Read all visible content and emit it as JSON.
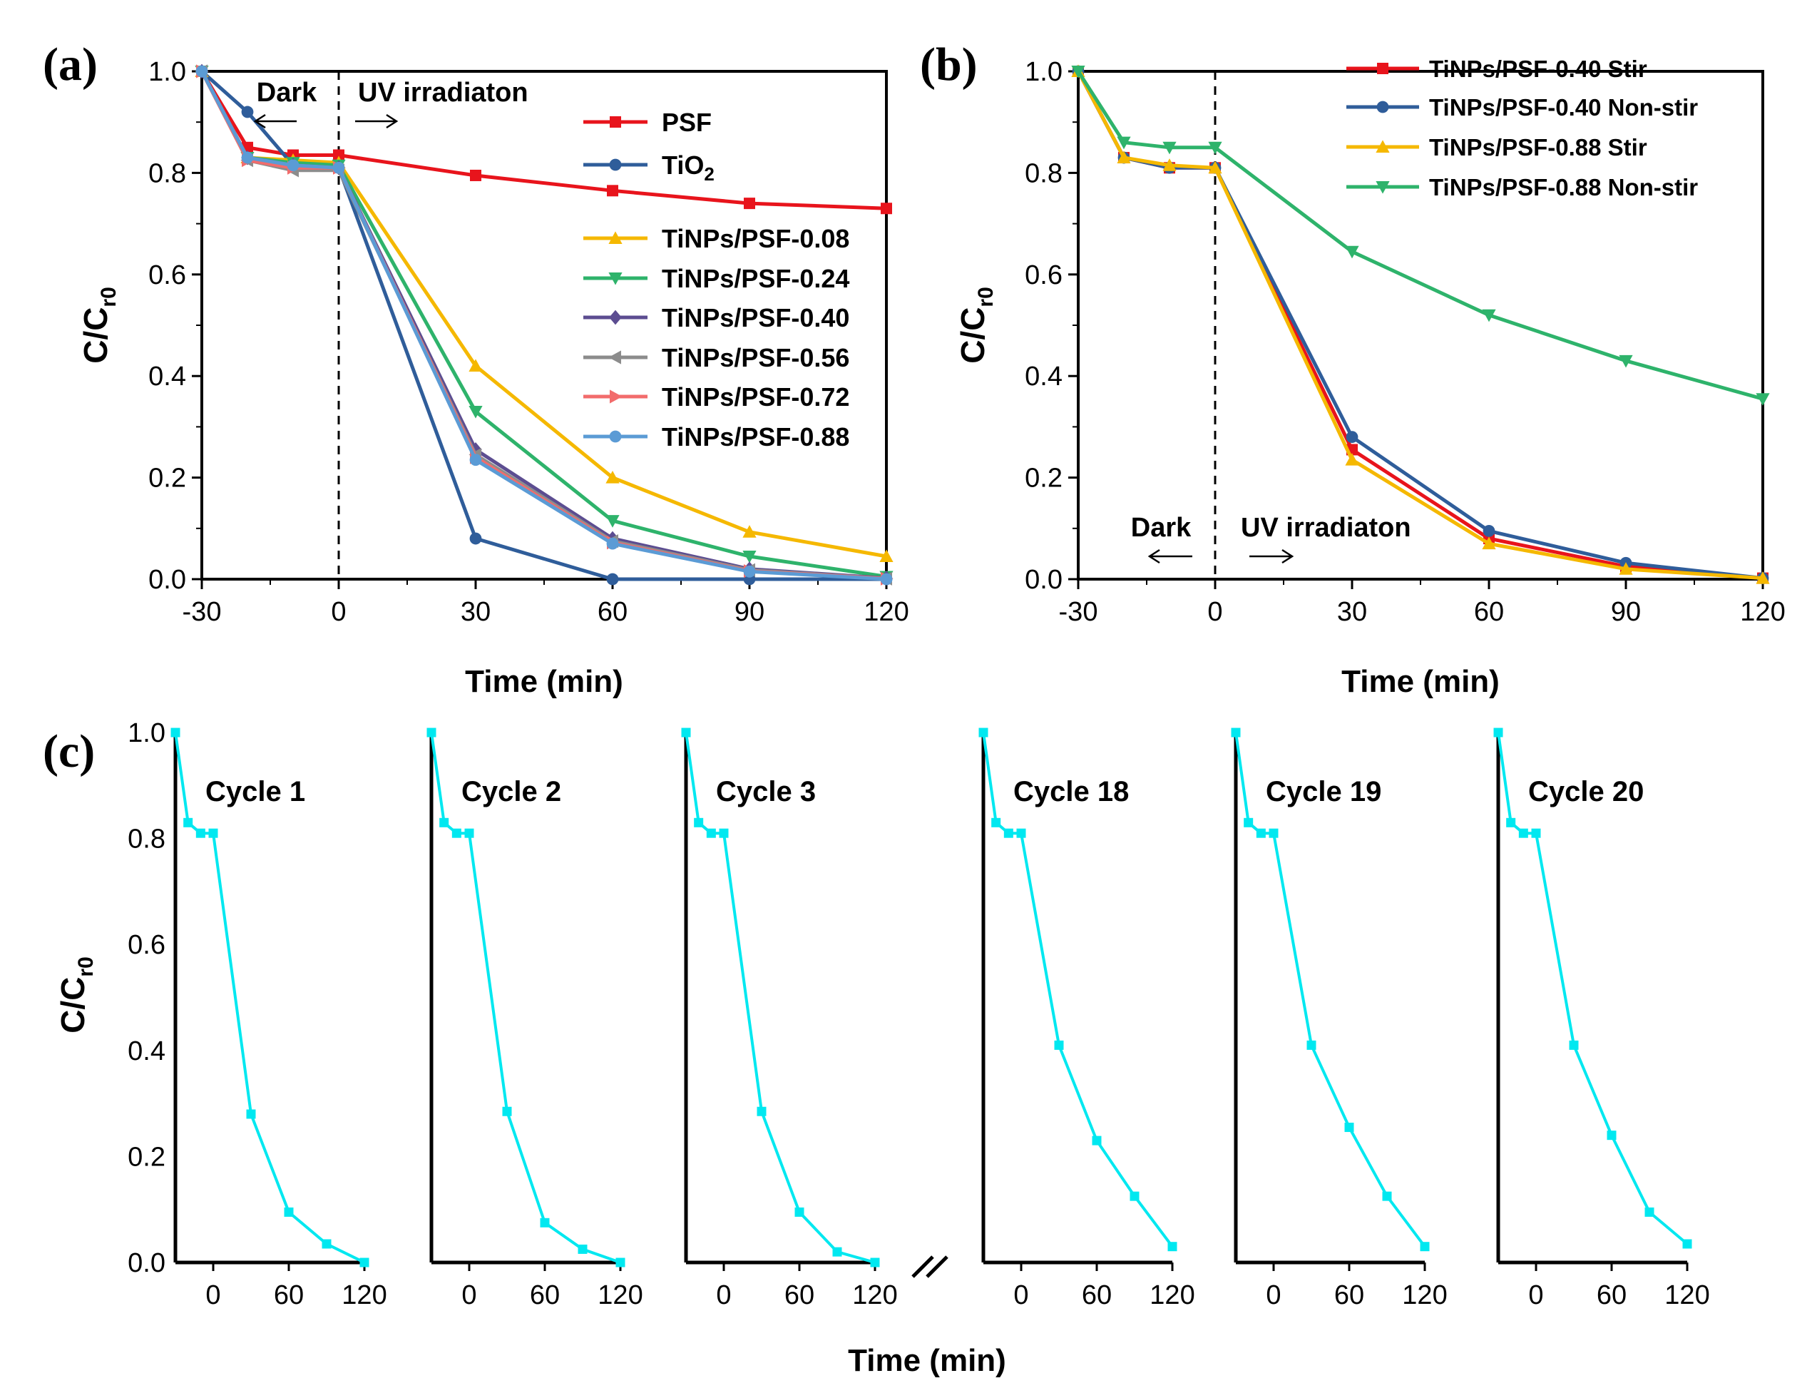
{
  "panels": {
    "a": {
      "label": "(a)"
    },
    "b": {
      "label": "(b)"
    },
    "c": {
      "label": "(c)"
    }
  },
  "chart_data": [
    {
      "id": "a",
      "type": "line",
      "title": "",
      "xlabel": "Time (min)",
      "ylabel": "C/C",
      "ylabel_sub": "r0",
      "xlim": [
        -30,
        120
      ],
      "ylim": [
        0,
        1.0
      ],
      "xticks": [
        -30,
        0,
        30,
        60,
        90,
        120
      ],
      "yticks": [
        0.0,
        0.2,
        0.4,
        0.6,
        0.8,
        1.0
      ],
      "divider_x": 0,
      "annotations": {
        "dark": "Dark",
        "uv": "UV irradiaton"
      },
      "series": [
        {
          "name": "PSF",
          "name_sub": "",
          "color": "#e8141c",
          "marker": "square",
          "x": [
            -30,
            -20,
            -10,
            0,
            30,
            60,
            90,
            120
          ],
          "y": [
            1.0,
            0.85,
            0.835,
            0.835,
            0.795,
            0.765,
            0.74,
            0.73
          ]
        },
        {
          "name": "TiO",
          "name_sub": "2",
          "color": "#2f5d9a",
          "marker": "circle",
          "x": [
            -30,
            -20,
            -10,
            0,
            30,
            60,
            90,
            120
          ],
          "y": [
            1.0,
            0.92,
            0.815,
            0.81,
            0.08,
            0.0,
            0.0,
            0.0
          ]
        },
        {
          "name": "TiNPs/PSF-0.08",
          "name_sub": "",
          "color": "#f5b800",
          "marker": "triangle-up",
          "x": [
            -30,
            -20,
            -10,
            0,
            30,
            60,
            90,
            120
          ],
          "y": [
            1.0,
            0.83,
            0.825,
            0.82,
            0.42,
            0.2,
            0.093,
            0.045
          ]
        },
        {
          "name": "TiNPs/PSF-0.24",
          "name_sub": "",
          "color": "#2eb36b",
          "marker": "triangle-down",
          "x": [
            -30,
            -20,
            -10,
            0,
            30,
            60,
            90,
            120
          ],
          "y": [
            1.0,
            0.83,
            0.82,
            0.815,
            0.33,
            0.115,
            0.045,
            0.005
          ]
        },
        {
          "name": "TiNPs/PSF-0.40",
          "name_sub": "",
          "color": "#5c4d91",
          "marker": "diamond",
          "x": [
            -30,
            -20,
            -10,
            0,
            30,
            60,
            90,
            120
          ],
          "y": [
            1.0,
            0.83,
            0.815,
            0.81,
            0.255,
            0.08,
            0.02,
            0.002
          ]
        },
        {
          "name": "TiNPs/PSF-0.56",
          "name_sub": "",
          "color": "#8c8c8c",
          "marker": "triangle-left",
          "x": [
            -30,
            -20,
            -10,
            0,
            30,
            60,
            90,
            120
          ],
          "y": [
            1.0,
            0.825,
            0.805,
            0.805,
            0.245,
            0.075,
            0.018,
            0.001
          ]
        },
        {
          "name": "TiNPs/PSF-0.72",
          "name_sub": "",
          "color": "#f26c6c",
          "marker": "triangle-right",
          "x": [
            -30,
            -20,
            -10,
            0,
            30,
            60,
            90,
            120
          ],
          "y": [
            1.0,
            0.825,
            0.81,
            0.81,
            0.24,
            0.072,
            0.016,
            0.001
          ]
        },
        {
          "name": "TiNPs/PSF-0.88",
          "name_sub": "",
          "color": "#5b9bd5",
          "marker": "circle",
          "x": [
            -30,
            -20,
            -10,
            0,
            30,
            60,
            90,
            120
          ],
          "y": [
            1.0,
            0.83,
            0.815,
            0.81,
            0.235,
            0.07,
            0.015,
            0.0
          ]
        }
      ]
    },
    {
      "id": "b",
      "type": "line",
      "title": "",
      "xlabel": "Time (min)",
      "ylabel": "C/C",
      "ylabel_sub": "r0",
      "xlim": [
        -30,
        120
      ],
      "ylim": [
        0,
        1.0
      ],
      "xticks": [
        -30,
        0,
        30,
        60,
        90,
        120
      ],
      "yticks": [
        0.0,
        0.2,
        0.4,
        0.6,
        0.8,
        1.0
      ],
      "divider_x": 0,
      "annotations": {
        "dark": "Dark",
        "uv": "UV irradiaton"
      },
      "series": [
        {
          "name": "TiNPs/PSF-0.40 Stir",
          "color": "#e8141c",
          "marker": "square",
          "x": [
            -30,
            -20,
            -10,
            0,
            30,
            60,
            90,
            120
          ],
          "y": [
            1.0,
            0.83,
            0.81,
            0.81,
            0.255,
            0.08,
            0.025,
            0.002
          ]
        },
        {
          "name": "TiNPs/PSF-0.40 Non-stir",
          "color": "#2f5d9a",
          "marker": "circle",
          "x": [
            -30,
            -20,
            -10,
            0,
            30,
            60,
            90,
            120
          ],
          "y": [
            1.0,
            0.83,
            0.81,
            0.81,
            0.28,
            0.095,
            0.032,
            0.002
          ]
        },
        {
          "name": "TiNPs/PSF-0.88 Stir",
          "color": "#f5b800",
          "marker": "triangle-up",
          "x": [
            -30,
            -20,
            -10,
            0,
            30,
            60,
            90,
            120
          ],
          "y": [
            1.0,
            0.83,
            0.815,
            0.81,
            0.235,
            0.07,
            0.02,
            0.002
          ]
        },
        {
          "name": "TiNPs/PSF-0.88 Non-stir",
          "color": "#2eb36b",
          "marker": "triangle-down",
          "x": [
            -30,
            -20,
            -10,
            0,
            30,
            60,
            90,
            120
          ],
          "y": [
            1.0,
            0.86,
            0.85,
            0.85,
            0.645,
            0.52,
            0.43,
            0.355
          ]
        }
      ]
    },
    {
      "id": "c",
      "type": "line",
      "title": "",
      "xlabel": "Time (min)",
      "ylabel": "C/C",
      "ylabel_sub": "r0",
      "xlim": [
        -30,
        120
      ],
      "ylim": [
        0,
        1.0
      ],
      "xticks": [
        0,
        60,
        120
      ],
      "yticks": [
        0.0,
        0.2,
        0.4,
        0.6,
        0.8,
        1.0
      ],
      "break_mark": "//",
      "color": "#00e8f0",
      "marker": "square",
      "cycles": [
        {
          "name": "Cycle 1",
          "x": [
            -30,
            -20,
            -10,
            0,
            30,
            60,
            90,
            120
          ],
          "y": [
            1.0,
            0.83,
            0.81,
            0.81,
            0.28,
            0.095,
            0.035,
            0.0
          ]
        },
        {
          "name": "Cycle 2",
          "x": [
            -30,
            -20,
            -10,
            0,
            30,
            60,
            90,
            120
          ],
          "y": [
            1.0,
            0.83,
            0.81,
            0.81,
            0.285,
            0.075,
            0.025,
            0.0
          ]
        },
        {
          "name": "Cycle 3",
          "x": [
            -30,
            -20,
            -10,
            0,
            30,
            60,
            90,
            120
          ],
          "y": [
            1.0,
            0.83,
            0.81,
            0.81,
            0.285,
            0.095,
            0.02,
            0.0
          ]
        },
        {
          "name": "Cycle 18",
          "x": [
            -30,
            -20,
            -10,
            0,
            30,
            60,
            90,
            120
          ],
          "y": [
            1.0,
            0.83,
            0.81,
            0.81,
            0.41,
            0.23,
            0.125,
            0.03
          ]
        },
        {
          "name": "Cycle 19",
          "x": [
            -30,
            -20,
            -10,
            0,
            30,
            60,
            90,
            120
          ],
          "y": [
            1.0,
            0.83,
            0.81,
            0.81,
            0.41,
            0.255,
            0.125,
            0.03
          ]
        },
        {
          "name": "Cycle 20",
          "x": [
            -30,
            -20,
            -10,
            0,
            30,
            60,
            90,
            120
          ],
          "y": [
            1.0,
            0.83,
            0.81,
            0.81,
            0.41,
            0.24,
            0.095,
            0.035
          ]
        }
      ]
    }
  ]
}
